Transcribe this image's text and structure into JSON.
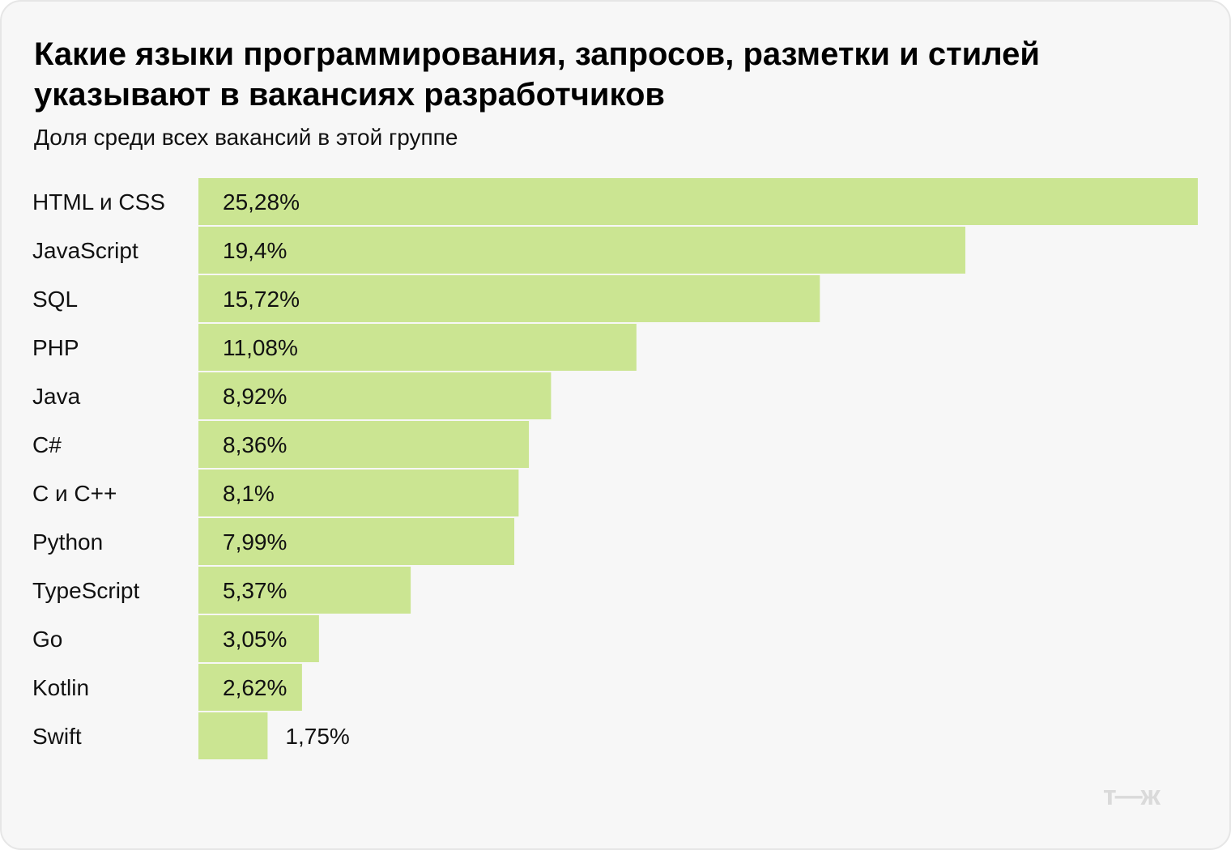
{
  "title": "Какие языки программирования, запросов, разметки и стилей указывают в вакансиях разработчиков",
  "subtitle": "Доля среди всех вакансий в этой группе",
  "logo": "т—ж",
  "colors": {
    "bar": "#cbe592",
    "background": "#f7f7f7"
  },
  "chart_data": {
    "type": "bar",
    "orientation": "horizontal",
    "categories": [
      "HTML и CSS",
      "JavaScript",
      "SQL",
      "PHP",
      "Java",
      "C#",
      "C и C++",
      "Python",
      "TypeScript",
      "Go",
      "Kotlin",
      "Swift"
    ],
    "values": [
      25.28,
      19.4,
      15.72,
      11.08,
      8.92,
      8.36,
      8.1,
      7.99,
      5.37,
      3.05,
      2.62,
      1.75
    ],
    "value_labels": [
      "25,28%",
      "19,4%",
      "15,72%",
      "11,08%",
      "8,92%",
      "8,36%",
      "8,1%",
      "7,99%",
      "5,37%",
      "3,05%",
      "2,62%",
      "1,75%"
    ],
    "unit": "%",
    "grid": false,
    "legend": "none"
  }
}
